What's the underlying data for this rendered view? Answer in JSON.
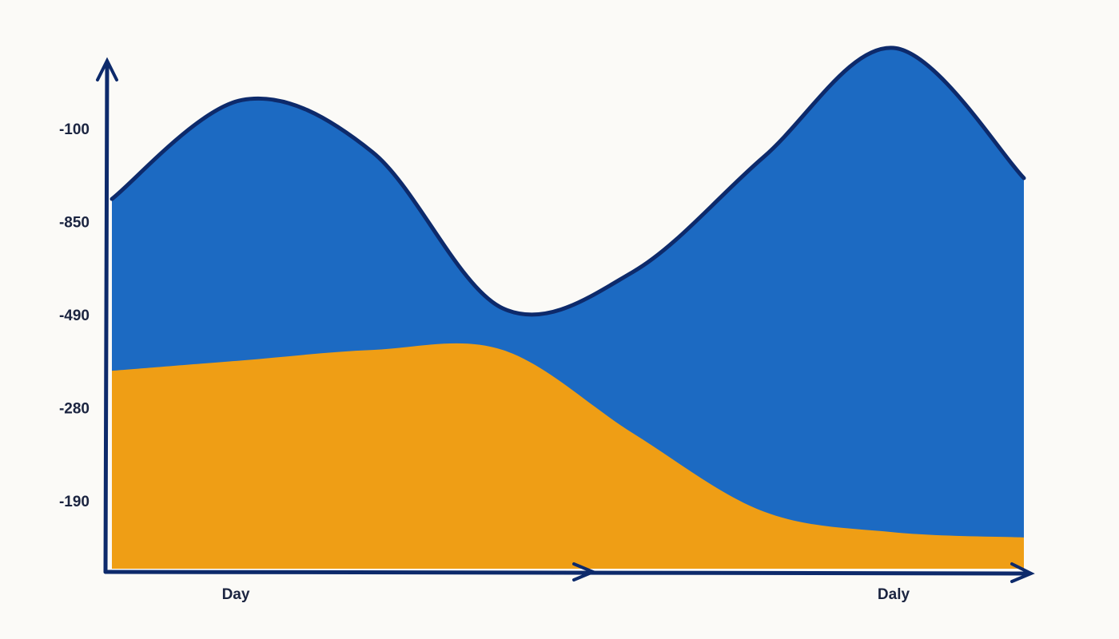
{
  "chart_data": {
    "type": "area",
    "categories": [
      null,
      "Day",
      null,
      null,
      null,
      null,
      "Daly",
      null
    ],
    "series": [
      {
        "color": "#1565c0",
        "outline": "#0d2a6b",
        "values": [
          71,
          90,
          80,
          50,
          57,
          79,
          100,
          75
        ]
      },
      {
        "color": "#f7a010",
        "values": [
          38,
          40,
          42,
          42,
          26,
          11,
          7,
          6
        ]
      }
    ],
    "ylim": [
      0,
      100
    ],
    "yticks": [
      -100,
      -850,
      -490,
      -280,
      -190
    ],
    "axis_color": "#0d2a6b"
  }
}
